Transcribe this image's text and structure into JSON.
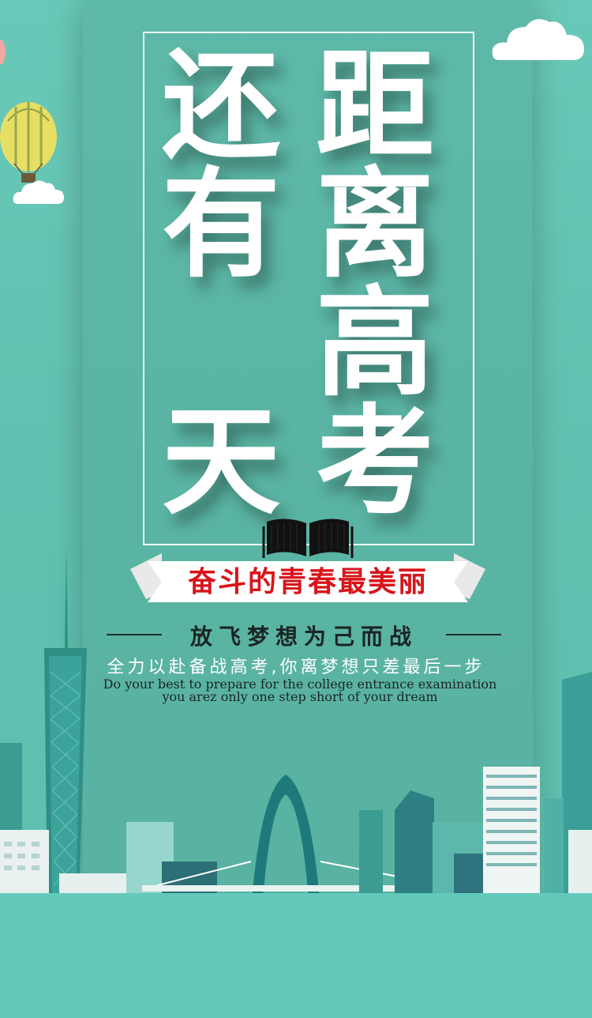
{
  "headline": {
    "left_column": [
      "还",
      "有",
      "",
      "天"
    ],
    "right_column": [
      "距",
      "离",
      "高",
      "考"
    ]
  },
  "ribbon": {
    "text": "奋斗的青春最美丽"
  },
  "subtitle": "放飞梦想为己而战",
  "slogan": "全力以赴备战高考,你离梦想只差最后一步",
  "english": {
    "line1": "Do your best to prepare for the college entrance examination",
    "line2": "you arez only one step short of your dream"
  },
  "colors": {
    "background": "#63cbbb",
    "panel": "#5ab4a3",
    "ribbon_text": "#d8141b"
  },
  "icons": [
    "hot-air-balloon-icon",
    "cloud-icon",
    "open-book-icon",
    "city-skyline"
  ]
}
